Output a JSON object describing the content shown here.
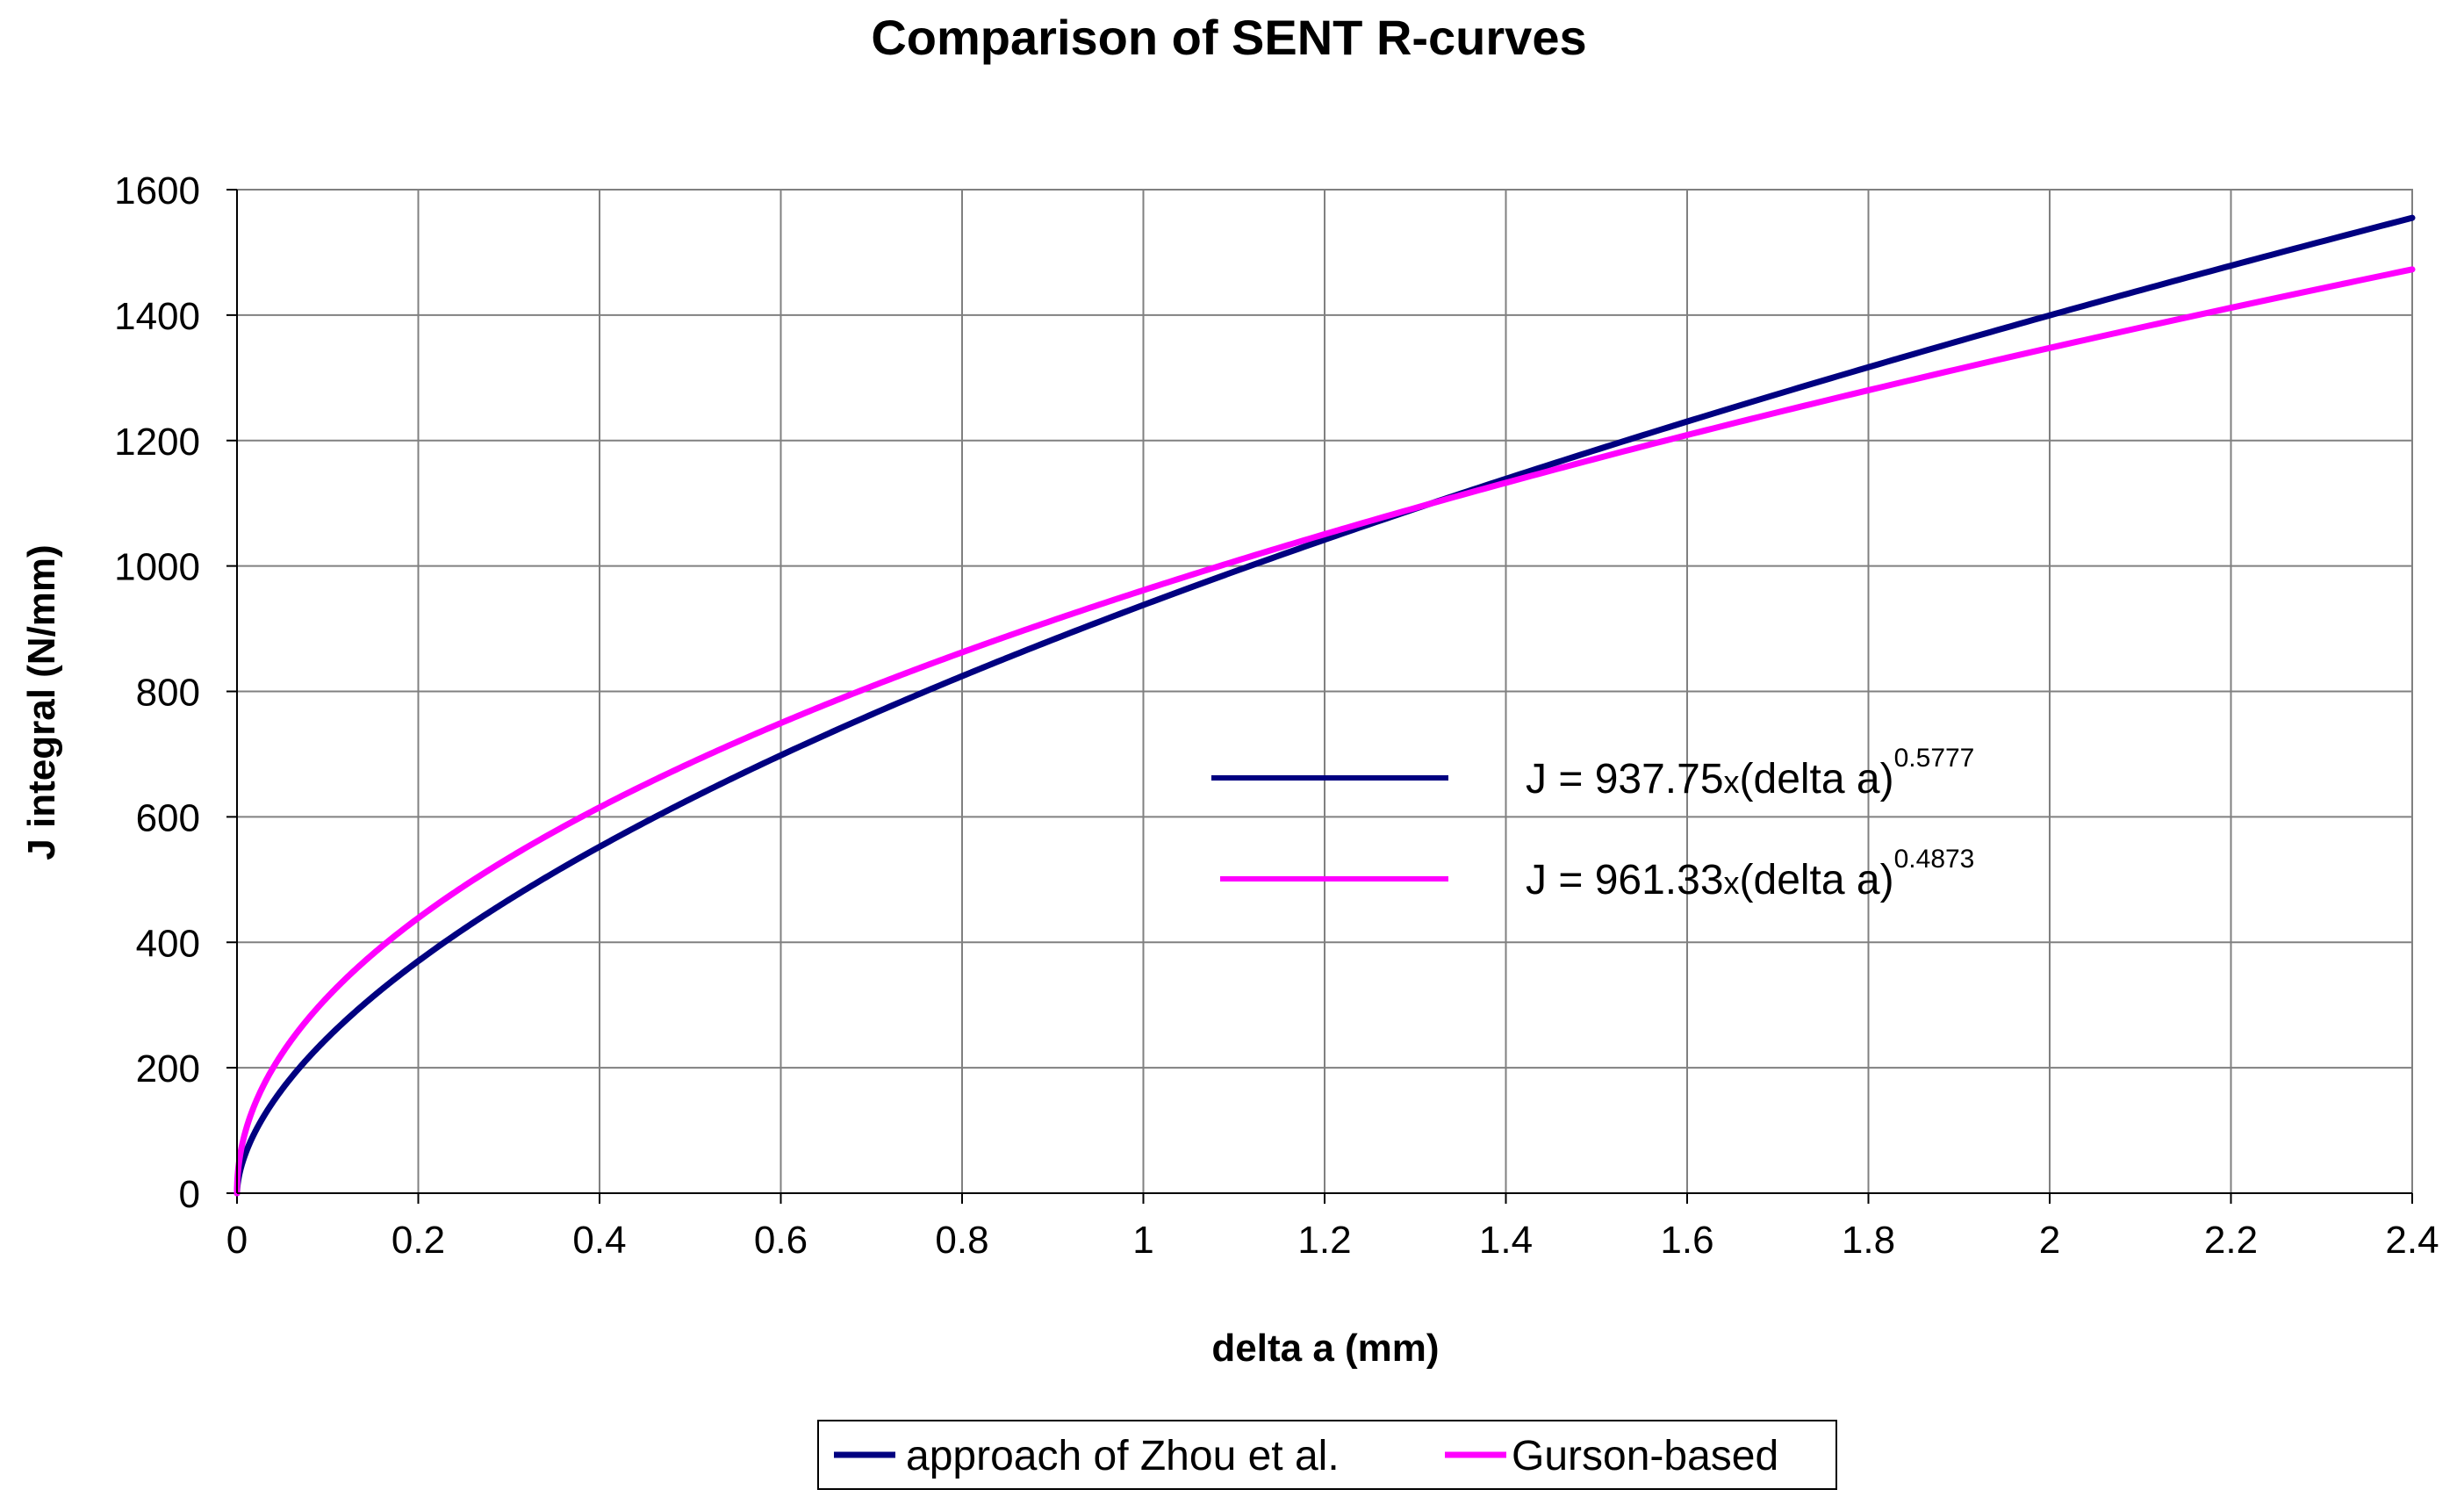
{
  "chart_data": {
    "type": "line",
    "title": "Comparison of SENT R-curves",
    "xlabel": "delta a (mm)",
    "ylabel": "J integral (N/mm)",
    "xlim": [
      0,
      2.4
    ],
    "ylim": [
      0,
      1600
    ],
    "xticks": [
      "0",
      "0.2",
      "0.4",
      "0.6",
      "0.8",
      "1",
      "1.2",
      "1.4",
      "1.6",
      "1.8",
      "2",
      "2.2",
      "2.4"
    ],
    "yticks": [
      "0",
      "200",
      "400",
      "600",
      "800",
      "1000",
      "1200",
      "1400",
      "1600"
    ],
    "grid": true,
    "legend_position": "bottom",
    "series": [
      {
        "name": "approach of Zhou et al.",
        "color": "#000080",
        "coefficient": 937.75,
        "exponent": 0.5777,
        "equation": {
          "prefix": "J = 937.75",
          "times": "x",
          "base": "(delta a)",
          "power": "0.5777"
        },
        "x": [
          0,
          0.05,
          0.1,
          0.2,
          0.4,
          0.6,
          0.8,
          1.0,
          1.2,
          1.4,
          1.6,
          1.8,
          2.0,
          2.2,
          2.4
        ],
        "values": [
          0,
          166,
          248,
          371,
          555,
          697,
          823,
          938,
          1044,
          1138,
          1233,
          1318,
          1400,
          1479,
          1556
        ]
      },
      {
        "name": "Gurson-based",
        "color": "#ff00ff",
        "coefficient": 961.33,
        "exponent": 0.4873,
        "equation": {
          "prefix": "J = 961.33",
          "times": "x",
          "base": "(delta a)",
          "power": "0.4873"
        },
        "x": [
          0,
          0.05,
          0.1,
          0.2,
          0.4,
          0.6,
          0.8,
          1.0,
          1.2,
          1.4,
          1.6,
          1.8,
          2.0,
          2.2,
          2.4
        ],
        "values": [
          0,
          225,
          314,
          438,
          614,
          751,
          862,
          961,
          1049,
          1134,
          1210,
          1282,
          1347,
          1413,
          1472
        ]
      }
    ]
  }
}
